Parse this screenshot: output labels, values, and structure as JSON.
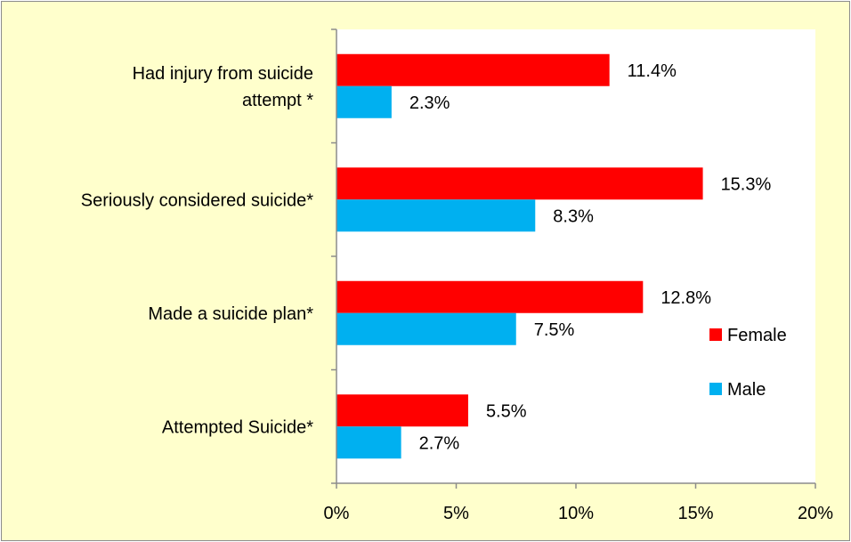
{
  "chart_data": {
    "type": "bar",
    "orientation": "horizontal",
    "categories": [
      [
        "Had injury from suicide",
        "attempt *"
      ],
      [
        "Seriously considered suicide*"
      ],
      [
        "Made a suicide plan*"
      ],
      [
        "Attempted Suicide*"
      ]
    ],
    "series": [
      {
        "name": "Female",
        "color": "#ff0000",
        "values": [
          11.4,
          15.3,
          12.8,
          5.5
        ],
        "labels": [
          "11.4%",
          "15.3%",
          "12.8%",
          "5.5%"
        ]
      },
      {
        "name": "Male",
        "color": "#00b0f0",
        "values": [
          2.3,
          8.3,
          7.5,
          2.7
        ],
        "labels": [
          "2.3%",
          "8.3%",
          "7.5%",
          "2.7%"
        ]
      }
    ],
    "xlim": [
      0,
      20
    ],
    "xticks": [
      0,
      5,
      10,
      15,
      20
    ],
    "xtick_labels": [
      "0%",
      "5%",
      "10%",
      "15%",
      "20%"
    ],
    "grid": false,
    "legend": "right",
    "plot_background": "#ffffff",
    "chart_background": "#ffffcc"
  }
}
